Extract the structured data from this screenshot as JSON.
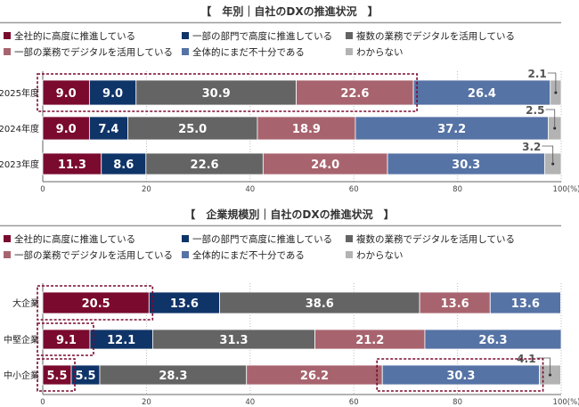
{
  "colors": [
    "#7a0a2e",
    "#0f3468",
    "#646464",
    "#a8646e",
    "#5673a5",
    "#b3b3b3"
  ],
  "chart_data": [
    {
      "type": "bar",
      "orientation": "horizontal-stacked",
      "title": "【　年別｜自社のDXの推進状況　】",
      "legend": [
        "全社的に高度に推進している",
        "一部の部門で高度に推進している",
        "複数の業務でデジタルを活用している",
        "一部の業務でデジタルを活用している",
        "全体的にまだ不十分である",
        "わからない"
      ],
      "legend_placement": "top",
      "categories": [
        "2025年度",
        "2024年度",
        "2023年度"
      ],
      "values": [
        [
          9.0,
          9.0,
          30.9,
          22.6,
          26.4,
          2.1
        ],
        [
          9.0,
          7.4,
          25.0,
          18.9,
          37.2,
          2.5
        ],
        [
          11.3,
          8.6,
          22.6,
          24.0,
          30.3,
          3.2
        ]
      ],
      "xlim": [
        0,
        100
      ],
      "xticks": [
        "0",
        "20",
        "40",
        "60",
        "80",
        "100(%)"
      ],
      "grid": true,
      "highlights": [
        [
          0,
          [
            0,
            1,
            2,
            3
          ]
        ]
      ]
    },
    {
      "type": "bar",
      "orientation": "horizontal-stacked",
      "title": "【　企業規模別｜自社のDXの推進状況　】",
      "legend": [
        "全社的に高度に推進している",
        "一部の部門で高度に推進している",
        "複数の業務でデジタルを活用している",
        "一部の業務でデジタルを活用している",
        "全体的にまだ不十分である",
        "わからない"
      ],
      "legend_placement": "top",
      "categories": [
        "大企業",
        "中堅企業",
        "中小企業"
      ],
      "values": [
        [
          20.5,
          13.6,
          38.6,
          13.6,
          13.6,
          null
        ],
        [
          9.1,
          12.1,
          31.3,
          21.2,
          26.3,
          null
        ],
        [
          5.5,
          5.5,
          28.3,
          26.2,
          30.3,
          4.1
        ]
      ],
      "xlim": [
        0,
        100
      ],
      "xticks": [
        "0",
        "20",
        "40",
        "60",
        "80",
        "100(%)"
      ],
      "grid": true,
      "highlights": [
        [
          0,
          [
            0
          ]
        ],
        [
          1,
          [
            0
          ]
        ],
        [
          2,
          [
            0
          ]
        ],
        [
          2,
          [
            4
          ]
        ]
      ]
    }
  ]
}
